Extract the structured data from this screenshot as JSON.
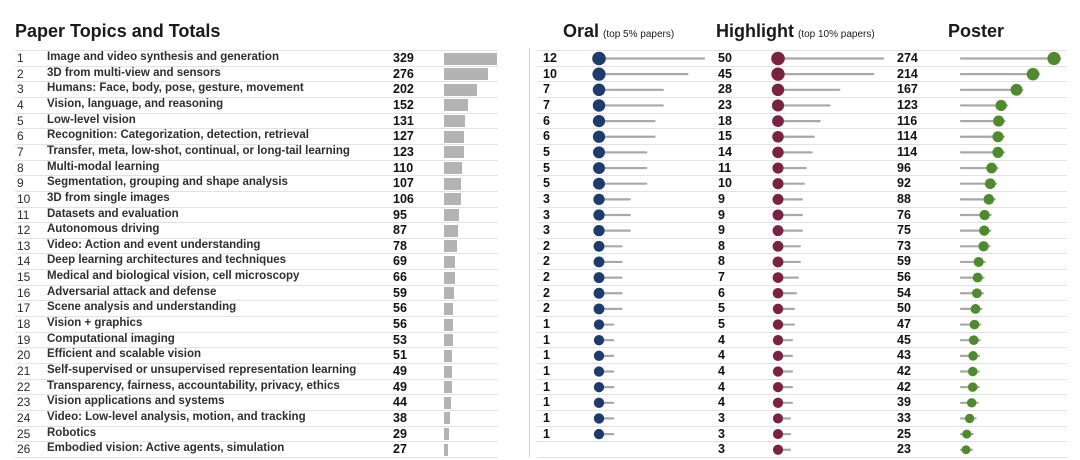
{
  "chart_data": {
    "type": "table",
    "title": "Paper Topics and Totals",
    "columns": [
      {
        "key": "oral",
        "label": "Oral",
        "note": "(top 5% papers)",
        "color": "#1f3b6e"
      },
      {
        "key": "highlight",
        "label": "Highlight",
        "note": "(top 10% papers)",
        "color": "#7a2340"
      },
      {
        "key": "poster",
        "label": "Poster",
        "note": "",
        "color": "#4f8a2e"
      }
    ],
    "line_color": "#a8a8a8",
    "total_bar_color": "#b3b3b3",
    "rows": [
      {
        "rank": "1",
        "topic": "Image and video synthesis and generation",
        "total": 329,
        "oral": 12,
        "highlight": 50,
        "poster": 274
      },
      {
        "rank": "2",
        "topic": "3D from multi-view and sensors",
        "total": 276,
        "oral": 10,
        "highlight": 45,
        "poster": 214
      },
      {
        "rank": "3",
        "topic": "Humans: Face, body, pose, gesture, movement",
        "total": 202,
        "oral": 7,
        "highlight": 28,
        "poster": 167
      },
      {
        "rank": "4",
        "topic": "Vision, language, and reasoning",
        "total": 152,
        "oral": 7,
        "highlight": 23,
        "poster": 123
      },
      {
        "rank": "5",
        "topic": "Low-level vision",
        "total": 131,
        "oral": 6,
        "highlight": 18,
        "poster": 116
      },
      {
        "rank": "6",
        "topic": "Recognition: Categorization, detection, retrieval",
        "total": 127,
        "oral": 6,
        "highlight": 15,
        "poster": 114
      },
      {
        "rank": "7",
        "topic": "Transfer, meta, low-shot, continual, or long-tail learning",
        "total": 123,
        "oral": 5,
        "highlight": 14,
        "poster": 114
      },
      {
        "rank": "8",
        "topic": "Multi-modal learning",
        "total": 110,
        "oral": 5,
        "highlight": 11,
        "poster": 96
      },
      {
        "rank": "9",
        "topic": "Segmentation, grouping and shape analysis",
        "total": 107,
        "oral": 5,
        "highlight": 10,
        "poster": 92
      },
      {
        "rank": "10",
        "topic": "3D from single images",
        "total": 106,
        "oral": 3,
        "highlight": 9,
        "poster": 88
      },
      {
        "rank": "11",
        "topic": "Datasets and evaluation",
        "total": 95,
        "oral": 3,
        "highlight": 9,
        "poster": 76
      },
      {
        "rank": "12",
        "topic": "Autonomous driving",
        "total": 87,
        "oral": 3,
        "highlight": 9,
        "poster": 75
      },
      {
        "rank": "13",
        "topic": "Video: Action and event understanding",
        "total": 78,
        "oral": 2,
        "highlight": 8,
        "poster": 73
      },
      {
        "rank": "14",
        "topic": "Deep learning architectures and techniques",
        "total": 69,
        "oral": 2,
        "highlight": 8,
        "poster": 59
      },
      {
        "rank": "15",
        "topic": "Medical and biological vision, cell microscopy",
        "total": 66,
        "oral": 2,
        "highlight": 7,
        "poster": 56
      },
      {
        "rank": "16",
        "topic": "Adversarial attack and defense",
        "total": 59,
        "oral": 2,
        "highlight": 6,
        "poster": 54
      },
      {
        "rank": "17",
        "topic": "Scene analysis and understanding",
        "total": 56,
        "oral": 2,
        "highlight": 5,
        "poster": 50
      },
      {
        "rank": "18",
        "topic": "Vision + graphics",
        "total": 56,
        "oral": 1,
        "highlight": 5,
        "poster": 47
      },
      {
        "rank": "19",
        "topic": "Computational imaging",
        "total": 53,
        "oral": 1,
        "highlight": 4,
        "poster": 45
      },
      {
        "rank": "20",
        "topic": "Efficient and scalable vision",
        "total": 51,
        "oral": 1,
        "highlight": 4,
        "poster": 43
      },
      {
        "rank": "21",
        "topic": "Self-supervised or unsupervised representation learning",
        "total": 49,
        "oral": 1,
        "highlight": 4,
        "poster": 42
      },
      {
        "rank": "22",
        "topic": "Transparency, fairness, accountability, privacy, ethics",
        "total": 49,
        "oral": 1,
        "highlight": 4,
        "poster": 42
      },
      {
        "rank": "23",
        "topic": "Vision applications and systems",
        "total": 44,
        "oral": 1,
        "highlight": 4,
        "poster": 39
      },
      {
        "rank": "24",
        "topic": "Video: Low-level analysis, motion, and tracking",
        "total": 38,
        "oral": 1,
        "highlight": 3,
        "poster": 33
      },
      {
        "rank": "25",
        "topic": "Robotics",
        "total": 29,
        "oral": 1,
        "highlight": 3,
        "poster": 25
      },
      {
        "rank": "26",
        "topic": "Embodied vision: Active agents, simulation",
        "total": 27,
        "oral": null,
        "highlight": 3,
        "poster": 23
      }
    ]
  }
}
